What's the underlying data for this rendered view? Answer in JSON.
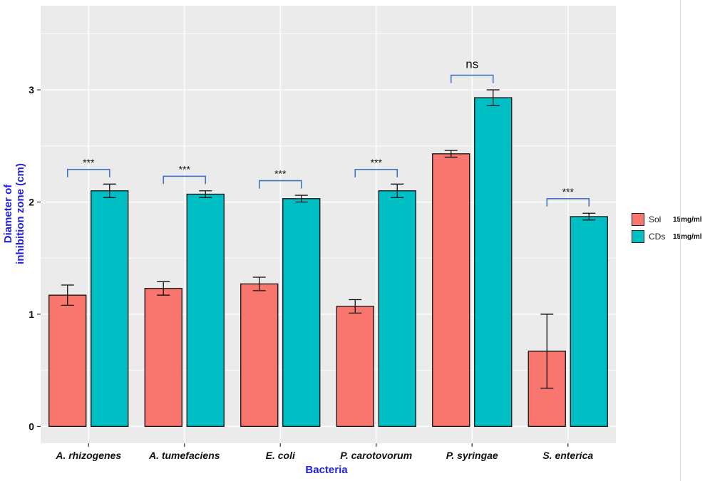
{
  "chart_data": {
    "type": "bar",
    "categories": [
      "A. rhizogenes",
      "A. tumefaciens",
      "E. coli",
      "P. carotovorum",
      "P. syringae",
      "S. enterica"
    ],
    "series": [
      {
        "name": "Sol",
        "concentration": "15mg/ml",
        "color": "#F8766D",
        "values": [
          1.17,
          1.23,
          1.27,
          1.07,
          2.43,
          0.67
        ],
        "errors": [
          0.09,
          0.06,
          0.06,
          0.06,
          0.03,
          0.33
        ]
      },
      {
        "name": "CDs",
        "concentration": "15mg/ml",
        "color": "#00BFC4",
        "values": [
          2.1,
          2.07,
          2.03,
          2.1,
          2.93,
          1.87
        ],
        "errors": [
          0.06,
          0.03,
          0.03,
          0.06,
          0.07,
          0.03
        ]
      }
    ],
    "significance": [
      "***",
      "***",
      "***",
      "***",
      "ns",
      "***"
    ],
    "xlabel": "Bacteria",
    "ylabel_line1": "Diameter of",
    "ylabel_line2": "inhibition zone (cm)",
    "ylim": [
      -0.15,
      3.75
    ],
    "yticks": [
      0,
      1,
      2,
      3
    ],
    "grid": true,
    "legend_position": "right",
    "bracket_color": "#4472C4",
    "panel_color": "#EBEBEB"
  }
}
